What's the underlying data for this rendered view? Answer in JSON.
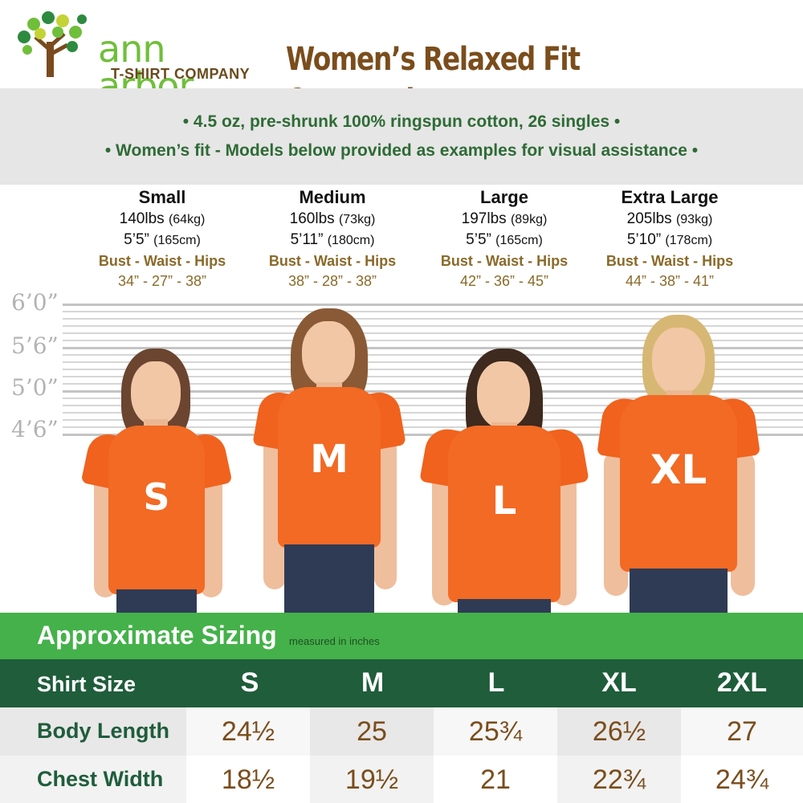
{
  "brand": {
    "name": "ann arbor",
    "sub": "T-SHIRT COMPANY"
  },
  "title": "Women’s Relaxed Fit Crewneck",
  "features": [
    "• 4.5 oz, pre-shrunk 100% ringspun cotton, 26 singles •",
    "• Women’s fit - Models below provided as examples for visual assistance •"
  ],
  "models": [
    {
      "size": "Small",
      "weight": "140lbs",
      "weight_metric": "(64kg)",
      "height": "5’5”",
      "height_metric": "(165cm)",
      "bwh_label": "Bust - Waist - Hips",
      "bwh": "34” - 27” - 38”",
      "shirt_letter": "S"
    },
    {
      "size": "Medium",
      "weight": "160lbs",
      "weight_metric": "(73kg)",
      "height": "5’11”",
      "height_metric": "(180cm)",
      "bwh_label": "Bust - Waist - Hips",
      "bwh": "38” - 28” - 38”",
      "shirt_letter": "M"
    },
    {
      "size": "Large",
      "weight": "197lbs",
      "weight_metric": "(89kg)",
      "height": "5’5”",
      "height_metric": "(165cm)",
      "bwh_label": "Bust - Waist - Hips",
      "bwh": "42” - 36” - 45”",
      "shirt_letter": "L"
    },
    {
      "size": "Extra Large",
      "weight": "205lbs",
      "weight_metric": "(93kg)",
      "height": "5’10”",
      "height_metric": "(178cm)",
      "bwh_label": "Bust - Waist - Hips",
      "bwh": "44” - 38” - 41”",
      "shirt_letter": "XL"
    }
  ],
  "height_ruler": [
    "6’0”",
    "5’6”",
    "5’0”",
    "4’6”"
  ],
  "sizing": {
    "title": "Approximate Sizing",
    "note": "measured in inches",
    "header_label": "Shirt Size",
    "sizes": [
      "S",
      "M",
      "L",
      "XL",
      "2XL"
    ],
    "rows": [
      {
        "label": "Body Length",
        "values": [
          "24½",
          "25",
          "25¾",
          "26½",
          "27"
        ]
      },
      {
        "label": "Chest Width",
        "values": [
          "18½",
          "19½",
          "21",
          "22¾",
          "24¾"
        ]
      }
    ]
  },
  "colors": {
    "shirt": "#f26a24",
    "brand_green": "#45b14a",
    "dark_green": "#1f5d3b",
    "brown": "#7a4d1c"
  }
}
